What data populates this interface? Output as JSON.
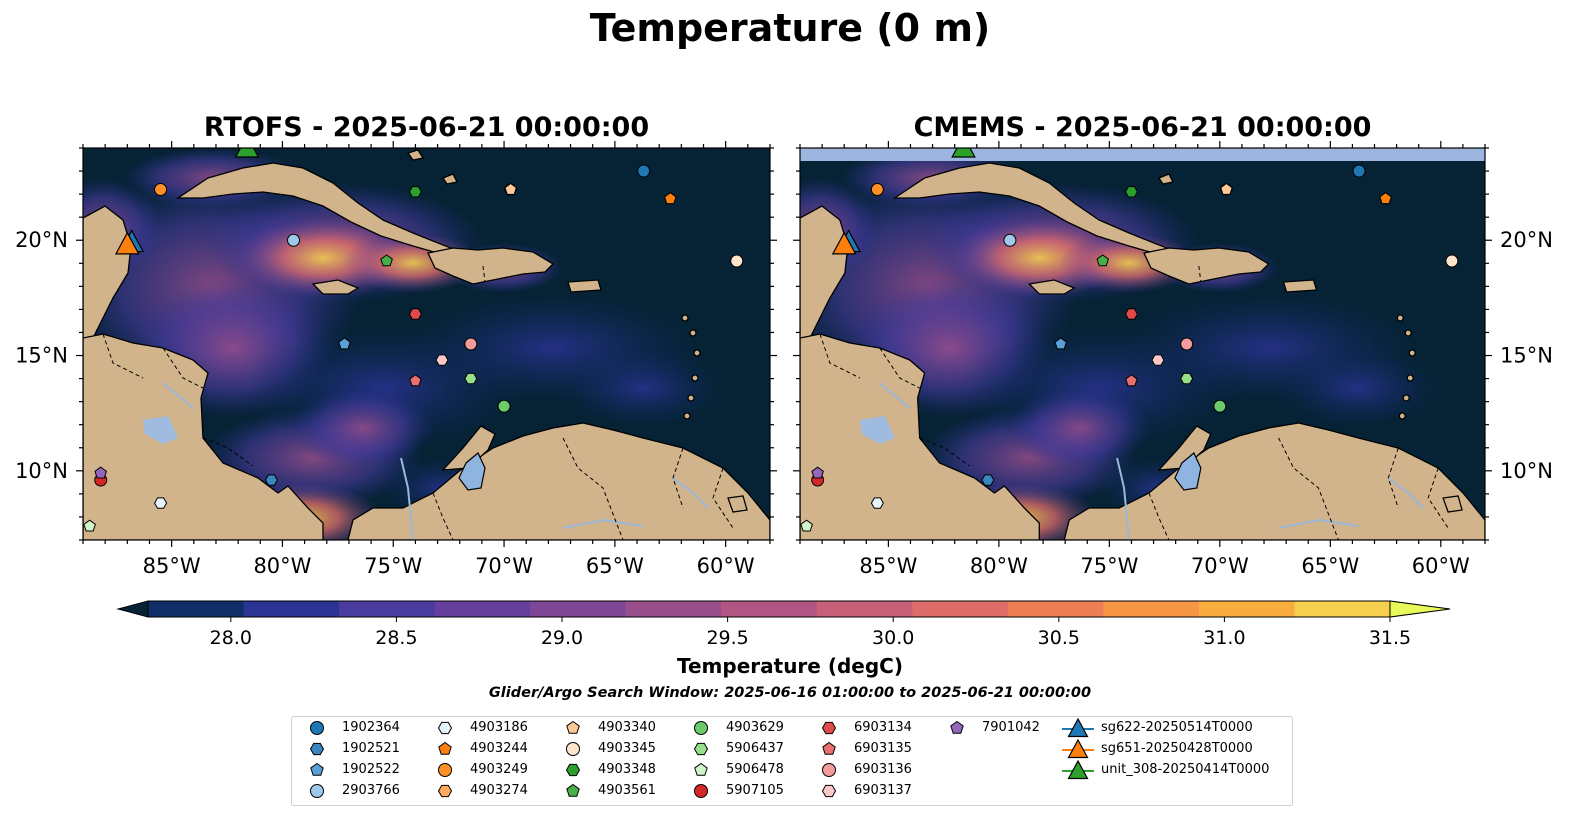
{
  "title": "Temperature (0 m)",
  "panels": [
    {
      "title": "RTOFS - 2025-06-21 00:00:00"
    },
    {
      "title": "CMEMS - 2025-06-21 00:00:00"
    }
  ],
  "axes": {
    "x_ticks": [
      "85°W",
      "80°W",
      "75°W",
      "70°W",
      "65°W",
      "60°W"
    ],
    "y_ticks": [
      "20°N",
      "15°N",
      "10°N"
    ]
  },
  "colorbar": {
    "label": "Temperature (degC)",
    "ticks": [
      "28.0",
      "28.5",
      "29.0",
      "29.5",
      "30.0",
      "30.5",
      "31.0",
      "31.5"
    ],
    "colors": [
      "#062235",
      "#0f2d66",
      "#2b3394",
      "#4a3c9e",
      "#663f9c",
      "#7e4795",
      "#994e8c",
      "#b15683",
      "#c85f78",
      "#de6d69",
      "#ee7e56",
      "#f79645",
      "#f9ad3e",
      "#f6cf4e",
      "#e7fa5a"
    ]
  },
  "search_window": "Glider/Argo Search Window: 2025-06-16 01:00:00 to 2025-06-21 00:00:00",
  "legend": {
    "argo": [
      {
        "label": "1902364",
        "marker": "circle",
        "color": "#1f77b4"
      },
      {
        "label": "1902521",
        "marker": "hexagon",
        "color": "#3a87c0"
      },
      {
        "label": "1902522",
        "marker": "pentagon",
        "color": "#5aa0d6"
      },
      {
        "label": "2903766",
        "marker": "circle",
        "color": "#9ec9ea"
      },
      {
        "label": "4903186",
        "marker": "hexagon",
        "color": "#e6f3fb"
      },
      {
        "label": "4903244",
        "marker": "pentagon",
        "color": "#ff7f0e"
      },
      {
        "label": "4903249",
        "marker": "circle",
        "color": "#ff8f26"
      },
      {
        "label": "4903274",
        "marker": "hexagon",
        "color": "#ffab5e"
      },
      {
        "label": "4903340",
        "marker": "pentagon",
        "color": "#ffc896"
      },
      {
        "label": "4903345",
        "marker": "circle",
        "color": "#ffe4cc"
      },
      {
        "label": "4903348",
        "marker": "hexagon",
        "color": "#2ca02c"
      },
      {
        "label": "4903561",
        "marker": "pentagon",
        "color": "#48b048"
      },
      {
        "label": "4903629",
        "marker": "circle",
        "color": "#6cc96c"
      },
      {
        "label": "5906437",
        "marker": "hexagon",
        "color": "#98df8a"
      },
      {
        "label": "5906478",
        "marker": "pentagon",
        "color": "#d0f5c8"
      },
      {
        "label": "5907105",
        "marker": "circle",
        "color": "#d62728"
      },
      {
        "label": "6903134",
        "marker": "hexagon",
        "color": "#e04a4a"
      },
      {
        "label": "6903135",
        "marker": "pentagon",
        "color": "#ea6f6f"
      },
      {
        "label": "6903136",
        "marker": "circle",
        "color": "#f39a9a"
      },
      {
        "label": "6903137",
        "marker": "hexagon",
        "color": "#fbc8c8"
      },
      {
        "label": "7901042",
        "marker": "pentagon",
        "color": "#9467bd"
      }
    ],
    "gliders": [
      {
        "label": "sg622-20250514T0000",
        "color": "#1f77b4"
      },
      {
        "label": "sg651-20250428T0000",
        "color": "#ff7f0e"
      },
      {
        "label": "unit_308-20250414T0000",
        "color": "#2ca02c"
      }
    ]
  },
  "chart_data": {
    "type": "map",
    "field": "Temperature (degC), 0 m",
    "extent": {
      "lon": [
        -89,
        -58
      ],
      "lat": [
        7,
        24
      ]
    },
    "colorbar_range": [
      28.0,
      31.5
    ],
    "colorbar_extend": "both",
    "argo_floats": [
      {
        "id": "1902364",
        "lon": -63.7,
        "lat": 23.0
      },
      {
        "id": "1902521",
        "lon": -80.5,
        "lat": 9.6
      },
      {
        "id": "1902522",
        "lon": -77.2,
        "lat": 15.5
      },
      {
        "id": "2903766",
        "lon": -79.5,
        "lat": 20.0
      },
      {
        "id": "4903186",
        "lon": -85.5,
        "lat": 8.6
      },
      {
        "id": "4903244",
        "lon": -62.5,
        "lat": 21.8
      },
      {
        "id": "4903249",
        "lon": -85.5,
        "lat": 22.2
      },
      {
        "id": "4903274",
        "lon": -69.7,
        "lat": 22.2
      },
      {
        "id": "4903340",
        "lon": -69.7,
        "lat": 22.2
      },
      {
        "id": "4903345",
        "lon": -59.5,
        "lat": 19.1
      },
      {
        "id": "4903348",
        "lon": -74.0,
        "lat": 22.1
      },
      {
        "id": "4903561",
        "lon": -75.3,
        "lat": 19.1
      },
      {
        "id": "4903629",
        "lon": -70.0,
        "lat": 12.8
      },
      {
        "id": "5906437",
        "lon": -71.5,
        "lat": 14.0
      },
      {
        "id": "5906478",
        "lon": -88.7,
        "lat": 7.6
      },
      {
        "id": "5907105",
        "lon": -88.2,
        "lat": 9.6
      },
      {
        "id": "6903134",
        "lon": -74.0,
        "lat": 16.8
      },
      {
        "id": "6903135",
        "lon": -74.0,
        "lat": 13.9
      },
      {
        "id": "6903136",
        "lon": -71.5,
        "lat": 15.5
      },
      {
        "id": "6903137",
        "lon": -72.8,
        "lat": 14.8
      },
      {
        "id": "7901042",
        "lon": -88.2,
        "lat": 9.9
      }
    ],
    "gliders": [
      {
        "id": "sg622-20250514T0000",
        "lon": -86.8,
        "lat": 19.9
      },
      {
        "id": "sg651-20250428T0000",
        "lon": -87.0,
        "lat": 19.8
      },
      {
        "id": "unit_308-20250414T0000",
        "lon": -81.6,
        "lat": 24.0
      }
    ]
  }
}
